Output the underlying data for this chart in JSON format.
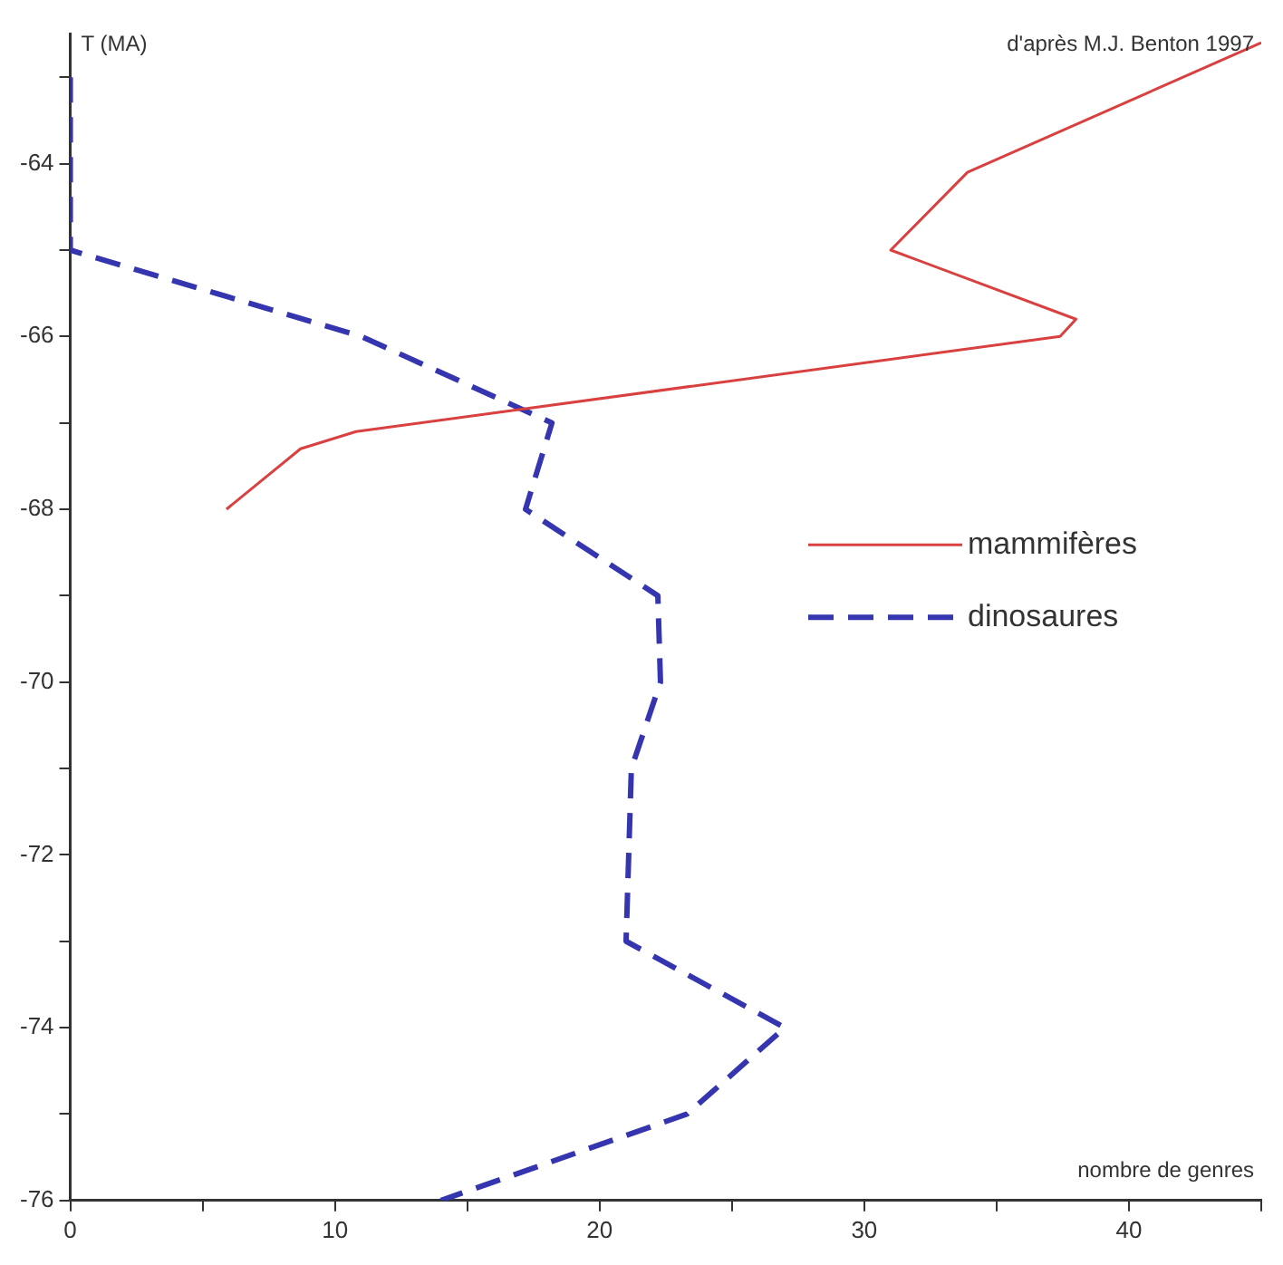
{
  "chart_data": {
    "type": "line",
    "xlabel": "nombre de genres",
    "ylabel": "T (MA)",
    "annotations": [
      "d'après M.J. Benton 1997"
    ],
    "xlim": [
      0,
      45
    ],
    "xticks": [
      0,
      {
        "value": 5,
        "label": null
      },
      10,
      {
        "value": 15,
        "label": null
      },
      20,
      {
        "value": 25,
        "label": null
      },
      30,
      {
        "value": 35,
        "label": null
      },
      40,
      {
        "value": 45,
        "label": null
      }
    ],
    "ylim": [
      -76,
      -62.5
    ],
    "yticks": [
      -76,
      {
        "value": -75,
        "label": null
      },
      -74,
      {
        "value": -73,
        "label": null
      },
      -72,
      {
        "value": -71,
        "label": null
      },
      -70,
      {
        "value": -69,
        "label": null
      },
      -68,
      {
        "value": -67,
        "label": null
      },
      -66,
      {
        "value": -65,
        "label": null
      },
      -64,
      {
        "value": -63,
        "label": null
      }
    ],
    "grid": false,
    "legend": "right",
    "marker": "none",
    "series": [
      {
        "name": "mammifères",
        "color": "#d94040",
        "line_style": "solid",
        "x": [
          45,
          33.9,
          31,
          38,
          37.4,
          10.8,
          8.7,
          5.9
        ],
        "values": [
          -62.6,
          -64.1,
          -65,
          -65.8,
          -66,
          -67.1,
          -67.3,
          -68
        ]
      },
      {
        "name": "dinosaures",
        "color": "#3535b0",
        "line_style": "dashed",
        "x": [
          0,
          0,
          11,
          18.2,
          17.2,
          22.2,
          22.3,
          21.2,
          21,
          27,
          23.3,
          14
        ],
        "values": [
          -63,
          -65,
          -66,
          -67,
          -68,
          -69,
          -70,
          -71,
          -73,
          -74,
          -75,
          -76
        ]
      }
    ]
  }
}
